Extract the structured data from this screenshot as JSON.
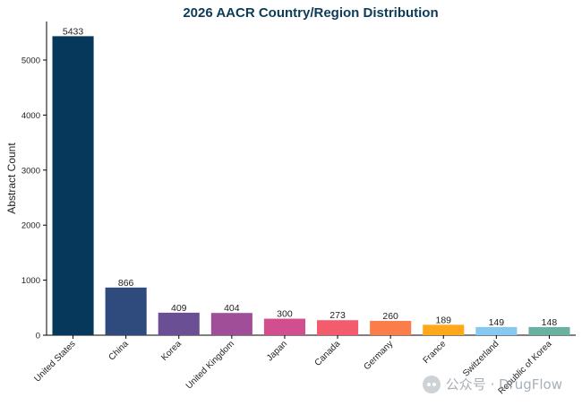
{
  "chart_data": {
    "type": "bar",
    "title": "2026 AACR Country/Region Distribution",
    "xlabel": "",
    "ylabel": "Abstract Count",
    "categories": [
      "United States",
      "China",
      "Korea",
      "United Kingdom",
      "Japan",
      "Canada",
      "Germany",
      "France",
      "Switzerland",
      "Republic of Korea"
    ],
    "values": [
      5433,
      866,
      409,
      404,
      300,
      273,
      260,
      189,
      149,
      148
    ],
    "ylim": [
      0,
      5700
    ],
    "yticks": [
      0,
      1000,
      2000,
      3000,
      4000,
      5000
    ],
    "colors": [
      "#05385a",
      "#2f4a7c",
      "#6a4f95",
      "#a04e98",
      "#d24f8f",
      "#f25c6c",
      "#fb7d4a",
      "#ffa81c",
      "#87c8f3",
      "#6ab1a2"
    ],
    "grid": false,
    "legend": "none"
  },
  "watermark": {
    "text": "公众号 · DrugFlow",
    "icon": "wechat-icon"
  }
}
